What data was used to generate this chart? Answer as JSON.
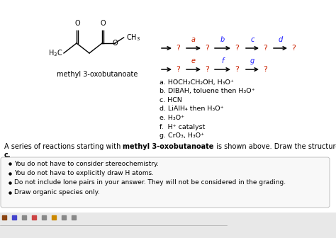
{
  "background_color": "#ffffff",
  "molecule_label": "methyl 3-oxobutanoate",
  "reagents_list": [
    "a. HOCH₂CH₂OH, H₃O⁺",
    "b. DIBAH, toluene then H₃O⁺",
    "c. HCN",
    "d. LiAlH₄ then H₃O⁺",
    "e. H₃O⁺",
    "f.  H⁺ catalyst",
    "g. CrO₃, H₃O⁺"
  ],
  "desc_plain": "A series of reactions starting with ",
  "desc_bold": "methyl 3-oxobutanoate",
  "desc_end": " is shown above. Draw the structure of the product of step",
  "desc_c": "c.",
  "bullet_points": [
    "You do not have to consider stereochemistry.",
    "You do not have to explicitly draw H atoms.",
    "Do not include lone pairs in your answer. They will not be considered in the grading.",
    "Draw organic species only."
  ],
  "red": "#cc2200",
  "blue": "#1a1aff",
  "black": "#000000",
  "gray": "#888888",
  "box_edge": "#c0c0c0",
  "box_fill": "#f8f8f8",
  "top_arrow_labels": [
    "a",
    "b",
    "c",
    "d"
  ],
  "top_arrow_colors": [
    "#cc2200",
    "#1a1aff",
    "#1a1aff",
    "#1a1aff"
  ],
  "bot_arrow_labels": [
    "e",
    "f",
    "g"
  ],
  "bot_arrow_colors": [
    "#cc2200",
    "#1a1aff",
    "#1a1aff"
  ]
}
